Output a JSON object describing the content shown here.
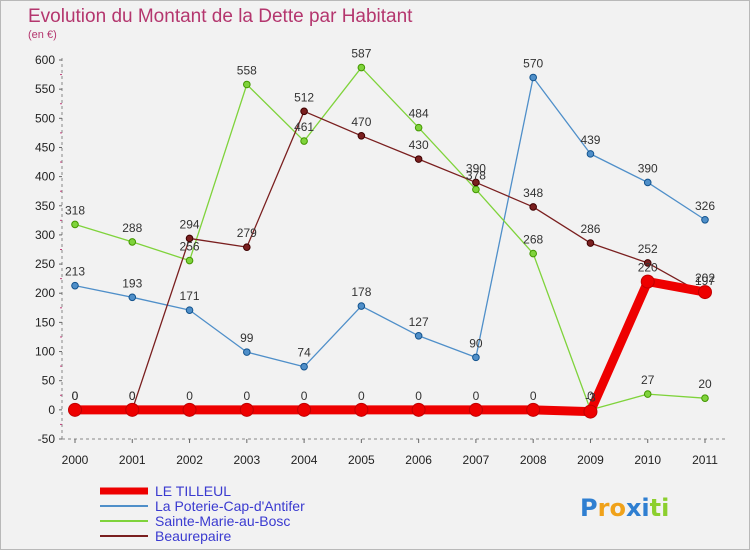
{
  "title": "Evolution du Montant de la Dette par Habitant",
  "subtitle": "(en €)",
  "logo": "Proxiti",
  "chart_data": {
    "type": "line",
    "x": [
      "2000",
      "2001",
      "2002",
      "2003",
      "2004",
      "2005",
      "2006",
      "2007",
      "2008",
      "2009",
      "2010",
      "2011"
    ],
    "ylim": [
      -50,
      600
    ],
    "yticks": [
      -50,
      0,
      50,
      100,
      150,
      200,
      250,
      300,
      350,
      400,
      450,
      500,
      550,
      600
    ],
    "grid": false,
    "legend_position": "bottom-left",
    "series": [
      {
        "name": "La Poterie-Cap-d'Antifer",
        "color": "#4f8fc9",
        "width": 1.3,
        "values": [
          213,
          193,
          171,
          99,
          74,
          178,
          127,
          90,
          570,
          439,
          390,
          326
        ]
      },
      {
        "name": "Sainte-Marie-au-Bosc",
        "color": "#7fd33b",
        "width": 1.3,
        "values": [
          318,
          288,
          256,
          558,
          461,
          587,
          484,
          378,
          268,
          0,
          27,
          20
        ]
      },
      {
        "name": "Beaurepaire",
        "color": "#7a1f1f",
        "width": 1.3,
        "values": [
          0,
          0,
          294,
          279,
          512,
          470,
          430,
          390,
          348,
          286,
          252,
          197
        ]
      },
      {
        "name": "LE TILLEUL",
        "color": "#ee0000",
        "width": 9,
        "values": [
          0,
          0,
          0,
          0,
          0,
          0,
          0,
          0,
          0,
          -3,
          220,
          202
        ]
      }
    ],
    "data_labels": [
      {
        "series": 0,
        "labels": [
          "213",
          "193",
          "171",
          "99",
          "74",
          "178",
          "127",
          "90",
          "570",
          "439",
          "390",
          "326"
        ]
      },
      {
        "series": 1,
        "labels": [
          "318",
          "288",
          "256",
          "558",
          "461",
          "587",
          "484",
          "378",
          "268",
          "0",
          "27",
          "20"
        ]
      },
      {
        "series": 2,
        "labels": [
          "0",
          "0",
          "294",
          "279",
          "512",
          "470",
          "430",
          "390",
          "348",
          "286",
          "252",
          "197"
        ]
      },
      {
        "series": 3,
        "labels": [
          "0",
          "0",
          "0",
          "0",
          "0",
          "0",
          "0",
          "0",
          "0",
          "-3",
          "220",
          "202"
        ]
      }
    ]
  }
}
